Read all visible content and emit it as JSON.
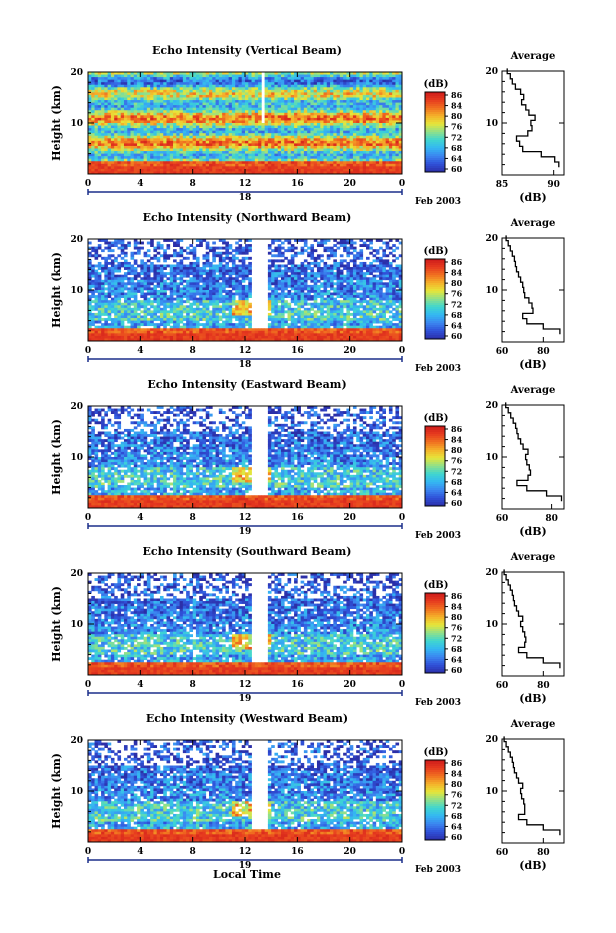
{
  "colors": {
    "colormap": [
      "#2b2fa8",
      "#2f50d8",
      "#3b86f0",
      "#34b7f2",
      "#3fd6d0",
      "#8fe08a",
      "#e6e63a",
      "#f5b12a",
      "#f07020",
      "#e63a1f",
      "#cc1a1a"
    ],
    "background": "#ffffff",
    "axis": "#000000"
  },
  "common": {
    "x_ticks": [
      "0",
      "4",
      "8",
      "12",
      "16",
      "20",
      "0"
    ],
    "y_ticks": [
      "20",
      "10"
    ],
    "ylabel": "Height (km)",
    "cb_unit": "(dB)",
    "cb_ticks": [
      "86",
      "84",
      "80",
      "76",
      "72",
      "68",
      "64",
      "60"
    ],
    "avg_title": "Average",
    "avg_xlabel": "(dB)",
    "month_label": "Feb 2003",
    "xlabel": "Local Time"
  },
  "chart_data": [
    {
      "type": "heatmap",
      "title": "Echo Intensity (Vertical Beam)",
      "day": "18",
      "ylim": [
        0,
        20
      ],
      "xlim": [
        0,
        24
      ],
      "clim": [
        60,
        86
      ],
      "empty_frac": 0.0,
      "profile_xlim": [
        85,
        91
      ],
      "profile_ticks": [
        "85",
        "90"
      ],
      "profile": [
        [
          2,
          90.5
        ],
        [
          3,
          90.1
        ],
        [
          4,
          88.8
        ],
        [
          5,
          87.0
        ],
        [
          6,
          86.7
        ],
        [
          7,
          86.4
        ],
        [
          8,
          87.5
        ],
        [
          9,
          87.9
        ],
        [
          10,
          87.8
        ],
        [
          11,
          88.2
        ],
        [
          12,
          87.6
        ],
        [
          13,
          87.3
        ],
        [
          14,
          86.9
        ],
        [
          15,
          87.1
        ],
        [
          16,
          86.8
        ],
        [
          17,
          86.3
        ],
        [
          18,
          86.0
        ],
        [
          19,
          85.8
        ],
        [
          20,
          85.5
        ]
      ]
    },
    {
      "type": "heatmap",
      "title": "Echo Intensity (Northward Beam)",
      "day": "18",
      "ylim": [
        0,
        20
      ],
      "xlim": [
        0,
        24
      ],
      "clim": [
        60,
        86
      ],
      "empty_frac": 0.35,
      "profile_xlim": [
        60,
        90
      ],
      "profile_ticks": [
        "60",
        "80"
      ],
      "profile": [
        [
          2,
          88.0
        ],
        [
          3,
          80.0
        ],
        [
          4,
          72.0
        ],
        [
          5,
          70.0
        ],
        [
          6,
          75.0
        ],
        [
          7,
          74.5
        ],
        [
          8,
          73.0
        ],
        [
          9,
          71.0
        ],
        [
          10,
          70.5
        ],
        [
          11,
          70.0
        ],
        [
          12,
          69.0
        ],
        [
          13,
          68.0
        ],
        [
          14,
          67.0
        ],
        [
          15,
          66.5
        ],
        [
          16,
          66.0
        ],
        [
          17,
          65.0
        ],
        [
          18,
          64.0
        ],
        [
          19,
          63.0
        ],
        [
          20,
          62.0
        ]
      ]
    },
    {
      "type": "heatmap",
      "title": "Echo Intensity (Eastward Beam)",
      "day": "19",
      "ylim": [
        0,
        20
      ],
      "xlim": [
        0,
        24
      ],
      "clim": [
        60,
        86
      ],
      "empty_frac": 0.4,
      "profile_xlim": [
        60,
        85
      ],
      "profile_ticks": [
        "60",
        "80"
      ],
      "profile": [
        [
          2,
          84.0
        ],
        [
          3,
          78.0
        ],
        [
          4,
          70.0
        ],
        [
          5,
          66.0
        ],
        [
          6,
          70.5
        ],
        [
          7,
          71.5
        ],
        [
          8,
          71.0
        ],
        [
          9,
          70.0
        ],
        [
          10,
          69.5
        ],
        [
          11,
          70.5
        ],
        [
          12,
          68.5
        ],
        [
          13,
          67.5
        ],
        [
          14,
          66.5
        ],
        [
          15,
          66.0
        ],
        [
          16,
          65.5
        ],
        [
          17,
          64.5
        ],
        [
          18,
          63.5
        ],
        [
          19,
          62.5
        ],
        [
          20,
          61.5
        ]
      ]
    },
    {
      "type": "heatmap",
      "title": "Echo Intensity (Southward Beam)",
      "day": "19",
      "ylim": [
        0,
        20
      ],
      "xlim": [
        0,
        24
      ],
      "clim": [
        60,
        86
      ],
      "empty_frac": 0.38,
      "profile_xlim": [
        60,
        90
      ],
      "profile_ticks": [
        "60",
        "80"
      ],
      "profile": [
        [
          2,
          88.0
        ],
        [
          3,
          80.0
        ],
        [
          4,
          72.0
        ],
        [
          5,
          68.0
        ],
        [
          6,
          71.0
        ],
        [
          7,
          71.5
        ],
        [
          8,
          71.0
        ],
        [
          9,
          70.0
        ],
        [
          10,
          69.0
        ],
        [
          11,
          70.0
        ],
        [
          12,
          68.0
        ],
        [
          13,
          67.0
        ],
        [
          14,
          66.0
        ],
        [
          15,
          65.5
        ],
        [
          16,
          65.0
        ],
        [
          17,
          64.0
        ],
        [
          18,
          63.0
        ],
        [
          19,
          62.0
        ],
        [
          20,
          61.0
        ]
      ]
    },
    {
      "type": "heatmap",
      "title": "Echo Intensity (Westward Beam)",
      "day": "19",
      "ylim": [
        0,
        20
      ],
      "xlim": [
        0,
        24
      ],
      "clim": [
        60,
        86
      ],
      "empty_frac": 0.4,
      "profile_xlim": [
        60,
        90
      ],
      "profile_ticks": [
        "60",
        "80"
      ],
      "profile": [
        [
          2,
          88.0
        ],
        [
          3,
          80.0
        ],
        [
          4,
          72.0
        ],
        [
          5,
          68.0
        ],
        [
          6,
          71.0
        ],
        [
          7,
          71.0
        ],
        [
          8,
          70.5
        ],
        [
          9,
          69.5
        ],
        [
          10,
          69.0
        ],
        [
          11,
          70.0
        ],
        [
          12,
          68.0
        ],
        [
          13,
          67.0
        ],
        [
          14,
          66.0
        ],
        [
          15,
          65.5
        ],
        [
          16,
          65.0
        ],
        [
          17,
          64.0
        ],
        [
          18,
          63.0
        ],
        [
          19,
          62.0
        ],
        [
          20,
          61.0
        ]
      ]
    }
  ]
}
